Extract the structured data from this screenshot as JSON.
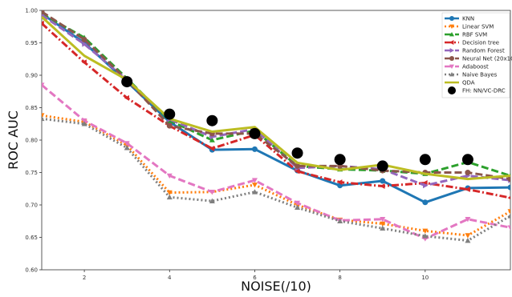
{
  "chart_data": {
    "type": "line",
    "xlabel": "NOISE(/10)",
    "ylabel": "ROC AUC",
    "xlim": [
      1,
      12
    ],
    "ylim": [
      0.6,
      1.0
    ],
    "xticks": [
      2,
      4,
      6,
      8,
      10
    ],
    "xtick_labels": [
      "2",
      "4",
      "6",
      "8",
      "10"
    ],
    "yticks": [
      0.6,
      0.65,
      0.7,
      0.75,
      0.8,
      0.85,
      0.9,
      0.95,
      1.0
    ],
    "ytick_labels": [
      "0.60",
      "0.65",
      "0.70",
      "0.75",
      "0.80",
      "0.85",
      "0.90",
      "0.95",
      "1.00"
    ],
    "legend_position": "top-right",
    "grid": false,
    "x": [
      1,
      2,
      3,
      4,
      5,
      6,
      7,
      8,
      9,
      10,
      11,
      12
    ],
    "series": [
      {
        "name": "KNN",
        "color": "#1f77b4",
        "dash": "solid",
        "marker": "circle",
        "values": [
          0.995,
          0.95,
          0.89,
          0.828,
          0.785,
          0.786,
          0.753,
          0.73,
          0.737,
          0.704,
          0.726,
          0.727
        ]
      },
      {
        "name": "Linear SVM",
        "color": "#ff7f0e",
        "dash": "dotted",
        "marker": "triangle-down",
        "values": [
          0.838,
          0.828,
          0.792,
          0.719,
          0.72,
          0.731,
          0.7,
          0.677,
          0.671,
          0.66,
          0.653,
          0.69
        ]
      },
      {
        "name": "RBF SVM",
        "color": "#2ca02c",
        "dash": "dashed",
        "marker": "triangle-up",
        "values": [
          0.995,
          0.958,
          0.895,
          0.83,
          0.8,
          0.815,
          0.76,
          0.755,
          0.753,
          0.748,
          0.766,
          0.745
        ]
      },
      {
        "name": "Decision tree",
        "color": "#d62728",
        "dash": "dashdot",
        "marker": "triangle-left",
        "values": [
          0.98,
          0.92,
          0.865,
          0.822,
          0.787,
          0.808,
          0.752,
          0.735,
          0.729,
          0.734,
          0.724,
          0.711
        ]
      },
      {
        "name": "Random Forest",
        "color": "#9467bd",
        "dash": "dashed",
        "marker": "triangle-right",
        "values": [
          0.993,
          0.948,
          0.893,
          0.832,
          0.805,
          0.817,
          0.757,
          0.76,
          0.755,
          0.73,
          0.745,
          0.738
        ]
      },
      {
        "name": "Neural Net (20x10)",
        "color": "#8c564b",
        "dash": "dashed",
        "marker": "hexagon",
        "values": [
          0.998,
          0.955,
          0.893,
          0.822,
          0.81,
          0.81,
          0.76,
          0.76,
          0.753,
          0.75,
          0.75,
          0.74
        ]
      },
      {
        "name": "Adaboost",
        "color": "#e377c2",
        "dash": "dashed",
        "marker": "triangle-down",
        "values": [
          0.885,
          0.83,
          0.795,
          0.745,
          0.72,
          0.738,
          0.703,
          0.676,
          0.678,
          0.648,
          0.678,
          0.665
        ]
      },
      {
        "name": "Naive Bayes",
        "color": "#7f7f7f",
        "dash": "dotted",
        "marker": "triangle-up",
        "values": [
          0.833,
          0.825,
          0.788,
          0.712,
          0.706,
          0.72,
          0.696,
          0.675,
          0.664,
          0.652,
          0.645,
          0.683
        ]
      },
      {
        "name": "QDA",
        "color": "#bcbd22",
        "dash": "solid",
        "marker": "none",
        "values": [
          0.99,
          0.93,
          0.893,
          0.833,
          0.813,
          0.82,
          0.765,
          0.754,
          0.762,
          0.748,
          0.74,
          0.745
        ]
      }
    ],
    "points_series": {
      "name": "FH: NN/VC-DRC",
      "color": "#000000",
      "marker": "big-circle",
      "x": [
        3,
        4,
        5,
        6,
        7,
        8,
        9,
        10,
        11
      ],
      "values": [
        0.89,
        0.84,
        0.83,
        0.81,
        0.78,
        0.77,
        0.76,
        0.77,
        0.77
      ]
    }
  }
}
